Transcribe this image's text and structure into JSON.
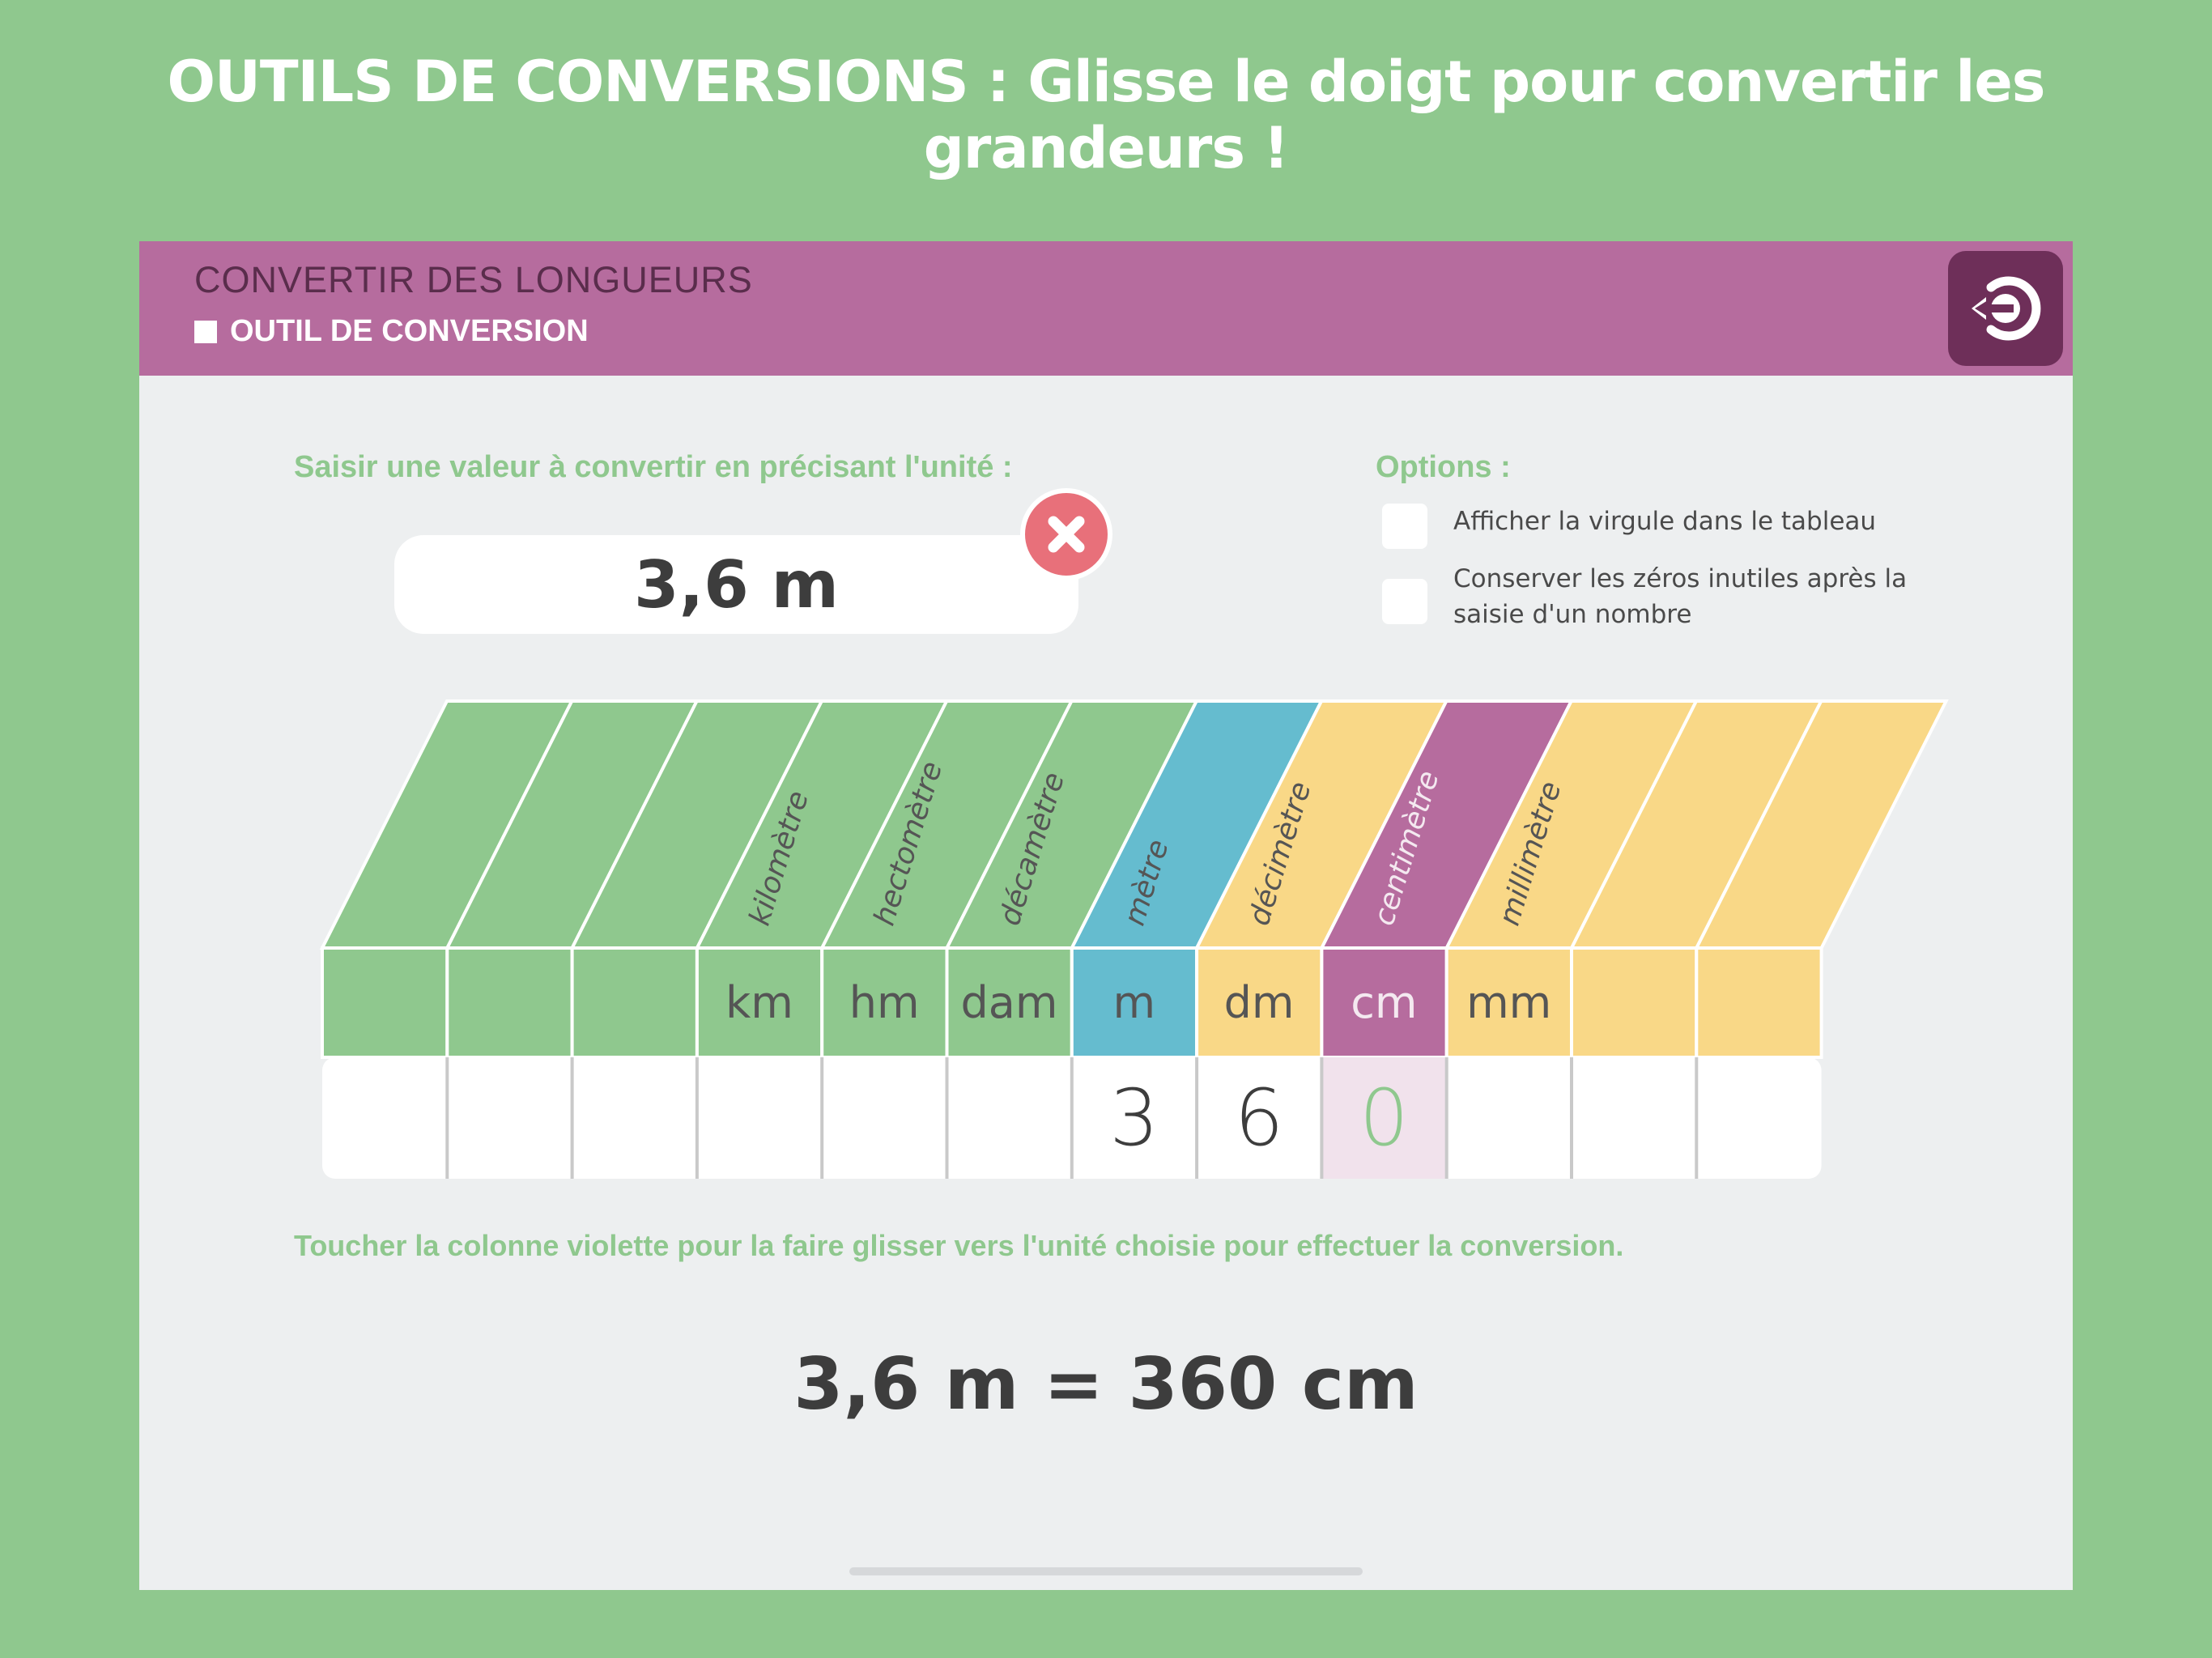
{
  "banner": "OUTILS DE CONVERSIONS : Glisse le doigt pour convertir les grandeurs !",
  "header": {
    "title": "CONVERTIR DES LONGUEURS",
    "subtitle": "OUTIL DE CONVERSION",
    "exit_icon": "exit-icon"
  },
  "input": {
    "label": "Saisir une valeur à convertir en précisant l'unité :",
    "value": "3,6 m",
    "clear_icon": "close-icon"
  },
  "options": {
    "label": "Options :",
    "items": [
      {
        "label": "Afficher la virgule dans le tableau",
        "checked": false
      },
      {
        "label": "Conserver les zéros inutiles après la saisie d'un nombre",
        "checked": false
      }
    ]
  },
  "table": {
    "columns": [
      {
        "name": "",
        "abbr": "",
        "digit": "",
        "color": "#8fc88e"
      },
      {
        "name": "",
        "abbr": "",
        "digit": "",
        "color": "#8fc88e"
      },
      {
        "name": "",
        "abbr": "",
        "digit": "",
        "color": "#8fc88e"
      },
      {
        "name": "kilomètre",
        "abbr": "km",
        "digit": "",
        "color": "#8fc88e"
      },
      {
        "name": "hectomètre",
        "abbr": "hm",
        "digit": "",
        "color": "#8fc88e"
      },
      {
        "name": "décamètre",
        "abbr": "dam",
        "digit": "",
        "color": "#8fc88e"
      },
      {
        "name": "mètre",
        "abbr": "m",
        "digit": "3",
        "color": "#65bccf"
      },
      {
        "name": "décimètre",
        "abbr": "dm",
        "digit": "6",
        "color": "#f9d887"
      },
      {
        "name": "centimètre",
        "abbr": "cm",
        "digit": "0",
        "color": "#b66c9e",
        "selected": true
      },
      {
        "name": "millimètre",
        "abbr": "mm",
        "digit": "",
        "color": "#f9d887"
      },
      {
        "name": "",
        "abbr": "",
        "digit": "",
        "color": "#f9d887"
      },
      {
        "name": "",
        "abbr": "",
        "digit": "",
        "color": "#f9d887"
      }
    ]
  },
  "hint": "Toucher la colonne violette pour la faire glisser vers l'unité choisie pour effectuer la conversion.",
  "result": "3,6 m = 360 cm"
}
